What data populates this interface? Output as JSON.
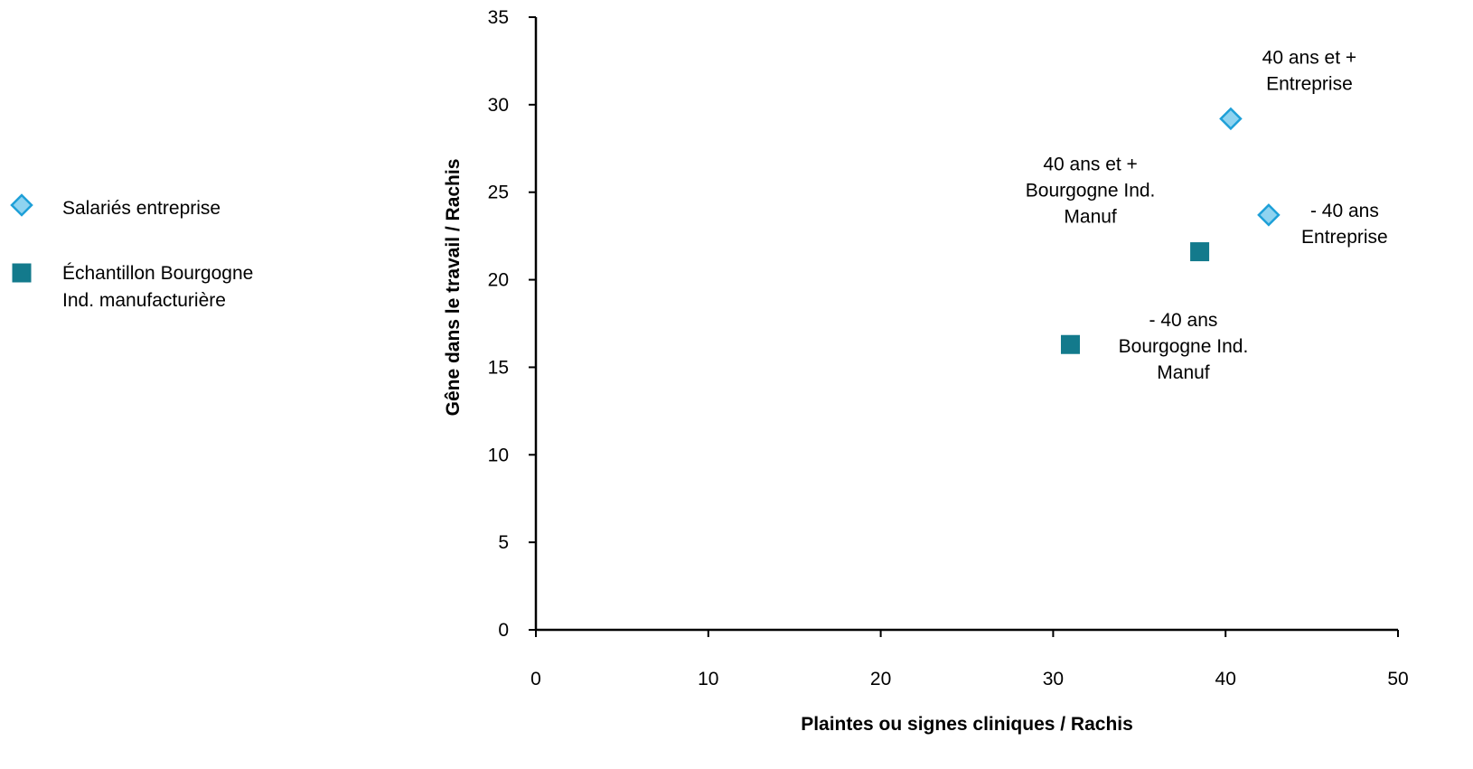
{
  "chart_data": {
    "type": "scatter",
    "title": "",
    "xlabel": "Plaintes ou signes cliniques / Rachis",
    "ylabel": "Gêne dans le travail / Rachis",
    "xlim": [
      0,
      50
    ],
    "ylim": [
      0,
      35
    ],
    "x_ticks": [
      0,
      10,
      20,
      30,
      40,
      50
    ],
    "y_ticks": [
      0,
      5,
      10,
      15,
      20,
      25,
      30,
      35
    ],
    "grid": false,
    "legend_position": "left",
    "series": [
      {
        "name": "Salariés entreprise",
        "name_lines": [
          "Salariés entreprise"
        ],
        "marker": "diamond",
        "fill": "#8fd3f0",
        "stroke": "#1ea0d8",
        "points": [
          {
            "x": 40.3,
            "y": 29.2,
            "label_lines": [
              "40 ans et +",
              "Entreprise"
            ],
            "label_anchor": "above-right"
          },
          {
            "x": 42.5,
            "y": 23.7,
            "label_lines": [
              "- 40 ans",
              "Entreprise"
            ],
            "label_anchor": "right"
          }
        ]
      },
      {
        "name": "Échantillon  Bourgogne Ind. manufacturière",
        "name_lines": [
          "Échantillon  Bourgogne",
          "Ind. manufacturière"
        ],
        "marker": "square",
        "fill": "#137a8c",
        "stroke": "#137a8c",
        "points": [
          {
            "x": 38.5,
            "y": 21.6,
            "label_lines": [
              "40 ans et +",
              "Bourgogne Ind.",
              "Manuf"
            ],
            "label_anchor": "above-left"
          },
          {
            "x": 31.0,
            "y": 16.3,
            "label_lines": [
              "- 40 ans",
              "Bourgogne Ind.",
              "Manuf"
            ],
            "label_anchor": "right"
          }
        ]
      }
    ]
  }
}
